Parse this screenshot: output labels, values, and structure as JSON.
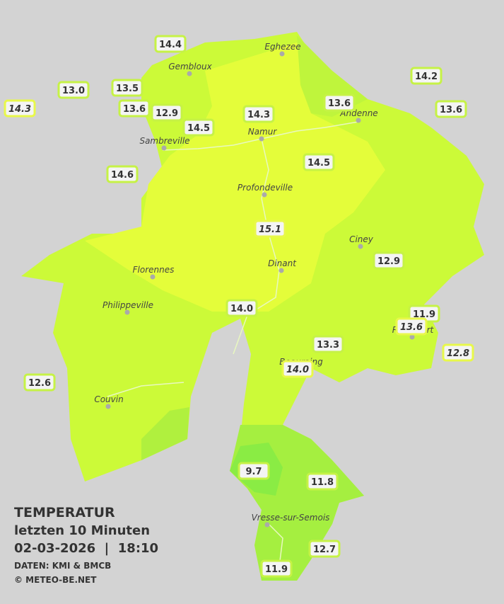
{
  "legend": {
    "title": "TEMPERATUR",
    "period": "letzten 10 Minuten",
    "datetime": "02-03-2026  |  18:10",
    "source": "DATEN: KMI & BMCB",
    "credit": "© METEO-BE.NET"
  },
  "towns": [
    "Eghezee",
    "Gembloux",
    "Andenne",
    "Namur",
    "Sambreville",
    "Profondeville",
    "Ciney",
    "Dinant",
    "Florennes",
    "Philippeville",
    "Rochefort",
    "Beauraing",
    "Couvin",
    "Vresse-sur-Semois"
  ],
  "readings": [
    {
      "value": "14.4"
    },
    {
      "value": "13.0"
    },
    {
      "value": "13.5"
    },
    {
      "value": "14.3",
      "italic": true
    },
    {
      "value": "13.6"
    },
    {
      "value": "12.9"
    },
    {
      "value": "14.5"
    },
    {
      "value": "14.3"
    },
    {
      "value": "13.6"
    },
    {
      "value": "14.2"
    },
    {
      "value": "13.6"
    },
    {
      "value": "14.6"
    },
    {
      "value": "14.5"
    },
    {
      "value": "15.1",
      "italic": true
    },
    {
      "value": "12.9"
    },
    {
      "value": "14.0"
    },
    {
      "value": "11.9"
    },
    {
      "value": "13.6",
      "italic": true
    },
    {
      "value": "12.8",
      "italic": true
    },
    {
      "value": "13.3"
    },
    {
      "value": "14.0",
      "italic": true
    },
    {
      "value": "12.6"
    },
    {
      "value": "9.7"
    },
    {
      "value": "11.8"
    },
    {
      "value": "12.7"
    },
    {
      "value": "11.9"
    }
  ]
}
